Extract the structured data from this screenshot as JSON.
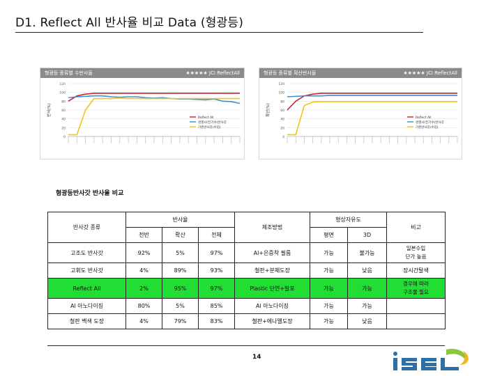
{
  "page": {
    "title": "D1. Reflect All 반사율 비교 Data (형광등)",
    "section_label": "형광등반사갓 반사율 비교",
    "page_number": "14",
    "logo_text": "iseL"
  },
  "charts": [
    {
      "header_left": "형광등 종류별 수반사율",
      "header_right": "★★★★★ JCI ReflectAll",
      "ylabel": "반사(%)",
      "legend": [
        "Reflect All",
        "경쟁사(전기수)반사갓",
        "기존반사갓(수입)"
      ]
    },
    {
      "header_left": "형광등 종류별 확산반사율",
      "header_right": "★★★★★ JCI ReflectAll",
      "ylabel": "확산(%)",
      "legend": [
        "Reflect All",
        "경쟁사(전기수)반사갓",
        "기존반사갓(수입)"
      ]
    }
  ],
  "chart_data": [
    {
      "type": "line",
      "ylim": [
        0,
        120
      ],
      "yticks": [
        0,
        20,
        40,
        60,
        80,
        100,
        120
      ],
      "series": [
        {
          "name": "Reflect All",
          "color": "#c0222e",
          "values": [
            80,
            92,
            96,
            98,
            98,
            98,
            98,
            98,
            98,
            98,
            98,
            98,
            98,
            98,
            98,
            98,
            98,
            98,
            98,
            98,
            98
          ]
        },
        {
          "name": "경쟁사(전기수)반사갓",
          "color": "#3a8fd0",
          "values": [
            88,
            90,
            91,
            92,
            92,
            90,
            89,
            90,
            90,
            88,
            87,
            88,
            86,
            85,
            85,
            84,
            83,
            85,
            80,
            79,
            75
          ]
        },
        {
          "name": "기존반사갓(수입)",
          "color": "#f0c419",
          "values": [
            4,
            4,
            60,
            86,
            86,
            86,
            87,
            86,
            86,
            86,
            86,
            86,
            86,
            86,
            86,
            86,
            86,
            86,
            86,
            86,
            86
          ]
        }
      ]
    },
    {
      "type": "line",
      "ylim": [
        0,
        120
      ],
      "yticks": [
        0,
        20,
        40,
        60,
        80,
        100,
        120
      ],
      "series": [
        {
          "name": "Reflect All",
          "color": "#c0222e",
          "values": [
            60,
            80,
            92,
            96,
            98,
            98,
            98,
            98,
            98,
            98,
            98,
            98,
            98,
            98,
            98,
            98,
            98,
            98,
            98,
            98,
            98
          ]
        },
        {
          "name": "경쟁사(전기수)반사갓",
          "color": "#3a8fd0",
          "values": [
            90,
            91,
            92,
            92,
            92,
            93,
            93,
            93,
            93,
            93,
            93,
            93,
            93,
            93,
            93,
            93,
            93,
            93,
            93,
            93,
            93
          ]
        },
        {
          "name": "기존반사갓(수입)",
          "color": "#f0c419",
          "values": [
            4,
            4,
            70,
            78,
            79,
            79,
            79,
            79,
            79,
            79,
            79,
            79,
            79,
            79,
            79,
            79,
            79,
            79,
            79,
            79,
            79
          ]
        }
      ]
    }
  ],
  "table": {
    "headers": {
      "type": "반사갓 종류",
      "reflectance": "반사율",
      "mirror": "전반",
      "diffuse": "확산",
      "total": "전체",
      "method": "제조방법",
      "formable": "형상자유도",
      "flat": "평면",
      "threeD": "3D",
      "note": "비고"
    },
    "rows": [
      {
        "type": "고조도 반사갓",
        "mirror": "92%",
        "diffuse": "5%",
        "total": "97%",
        "method": "Al+은증착 필름",
        "flat": "가능",
        "threed": "불가능",
        "note": "일본수입\n단가 높음",
        "highlight": false
      },
      {
        "type": "고휘도 반사갓",
        "mirror": "4%",
        "diffuse": "89%",
        "total": "93%",
        "method": "철판+분체도장",
        "flat": "가능",
        "threed": "낮음",
        "note": "장시간탈색",
        "highlight": false
      },
      {
        "type": "Reflect All",
        "mirror": "2%",
        "diffuse": "95%",
        "total": "97%",
        "method": "Plastic 단연+발포",
        "flat": "가능",
        "threed": "가능",
        "note": "경우에 따라\n구조물 필요",
        "highlight": true
      },
      {
        "type": "Al 아노다이징",
        "mirror": "80%",
        "diffuse": "5%",
        "total": "85%",
        "method": "Al 아노다이징",
        "flat": "가능",
        "threed": "가능",
        "note": "",
        "highlight": false
      },
      {
        "type": "철판 백색 도장",
        "mirror": "4%",
        "diffuse": "79%",
        "total": "83%",
        "method": "철판+에나멜도장",
        "flat": "가능",
        "threed": "낮음",
        "note": "",
        "highlight": false
      }
    ]
  }
}
